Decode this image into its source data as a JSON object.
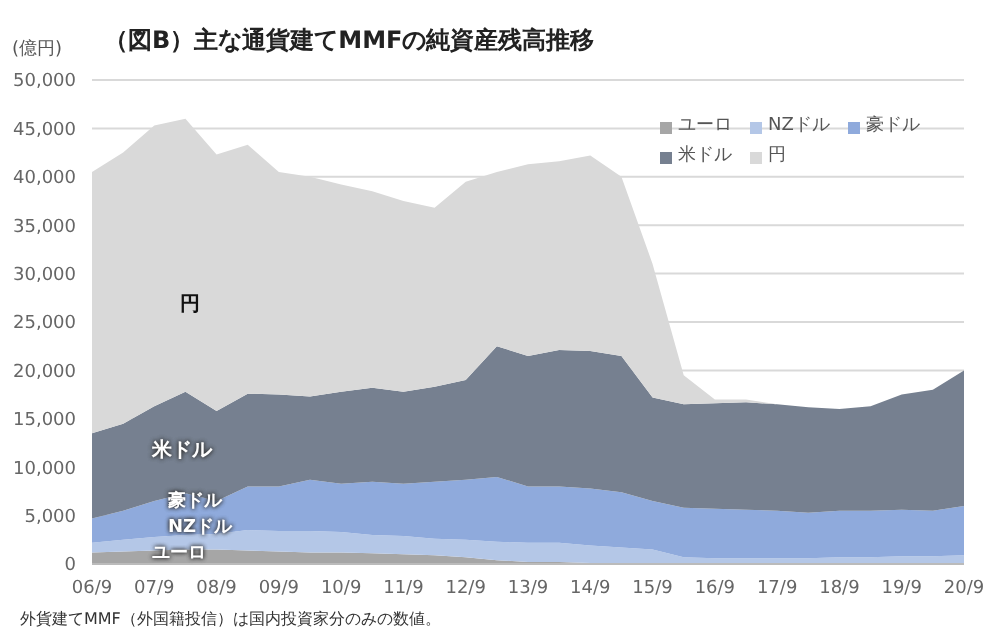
{
  "chart_data": {
    "type": "area",
    "stacked": true,
    "title": "（図B）主な通貨建てMMFの純資産残高推移",
    "ylabel": "(億円)",
    "categories": [
      "06/9",
      null,
      "07/9",
      null,
      "08/9",
      null,
      "09/9",
      null,
      "10/9",
      null,
      "11/9",
      null,
      "12/9",
      null,
      "13/9",
      null,
      "14/9",
      null,
      "15/9",
      null,
      "16/9",
      null,
      "17/9",
      null,
      "18/9",
      null,
      "19/9",
      null,
      "20/9"
    ],
    "series": [
      {
        "name": "ユーロ",
        "color": "#a6a6a6",
        "values": [
          1200,
          1300,
          1400,
          1500,
          1500,
          1400,
          1300,
          1200,
          1200,
          1100,
          1000,
          900,
          700,
          400,
          200,
          200,
          100,
          100,
          100,
          0,
          0,
          0,
          0,
          0,
          0,
          0,
          0,
          0,
          0
        ]
      },
      {
        "name": "NZドル",
        "color": "#b4c7e7",
        "values": [
          1000,
          1200,
          1400,
          1500,
          1600,
          2100,
          2100,
          2200,
          2100,
          1900,
          1900,
          1700,
          1800,
          1900,
          2000,
          2000,
          1800,
          1600,
          1400,
          700,
          600,
          600,
          600,
          600,
          700,
          700,
          800,
          800,
          900
        ]
      },
      {
        "name": "豪ドル",
        "color": "#8faadc",
        "values": [
          2500,
          3000,
          3700,
          4300,
          3400,
          4500,
          4600,
          5300,
          5000,
          5500,
          5400,
          5900,
          6200,
          6700,
          5800,
          5800,
          5900,
          5700,
          5000,
          5100,
          5100,
          5000,
          4900,
          4700,
          4800,
          4800,
          4800,
          4700,
          5100
        ]
      },
      {
        "name": "米ドル",
        "color": "#768090",
        "values": [
          8800,
          9000,
          9800,
          10500,
          9300,
          9600,
          9500,
          8600,
          9500,
          9700,
          9500,
          9800,
          10300,
          13500,
          13500,
          14100,
          14200,
          14100,
          10700,
          10700,
          10900,
          11100,
          11000,
          10900,
          10500,
          10800,
          11900,
          12500,
          14000
        ]
      },
      {
        "name": "円",
        "color": "#d9d9d9",
        "values": [
          27000,
          28000,
          29000,
          28200,
          26500,
          25700,
          23000,
          22700,
          21400,
          20300,
          19700,
          18500,
          20500,
          18000,
          19800,
          19500,
          20200,
          18500,
          13800,
          3000,
          400,
          300,
          0,
          0,
          0,
          0,
          0,
          0,
          0
        ]
      }
    ],
    "ylim": [
      0,
      50000
    ],
    "yticks": [
      0,
      {
        "value": 5000,
        "label": "5,000"
      },
      {
        "value": 10000,
        "label": "10,000"
      },
      {
        "value": 15000,
        "label": "15,000"
      },
      {
        "value": 20000,
        "label": "20,000"
      },
      {
        "value": 25000,
        "label": "25,000"
      },
      {
        "value": 30000,
        "label": "30,000"
      },
      {
        "value": 35000,
        "label": "35,000"
      },
      {
        "value": 40000,
        "label": "40,000"
      },
      {
        "value": 45000,
        "label": "45,000"
      },
      {
        "value": 50000,
        "label": "50,000"
      }
    ],
    "grid": "y",
    "legend": "top right",
    "annotations": [
      "円",
      "米ドル",
      "豪ドル",
      "NZドル",
      "ユーロ",
      "外貨建てMMF（外国籍投信）は国内投資家分のみの数値。"
    ]
  }
}
